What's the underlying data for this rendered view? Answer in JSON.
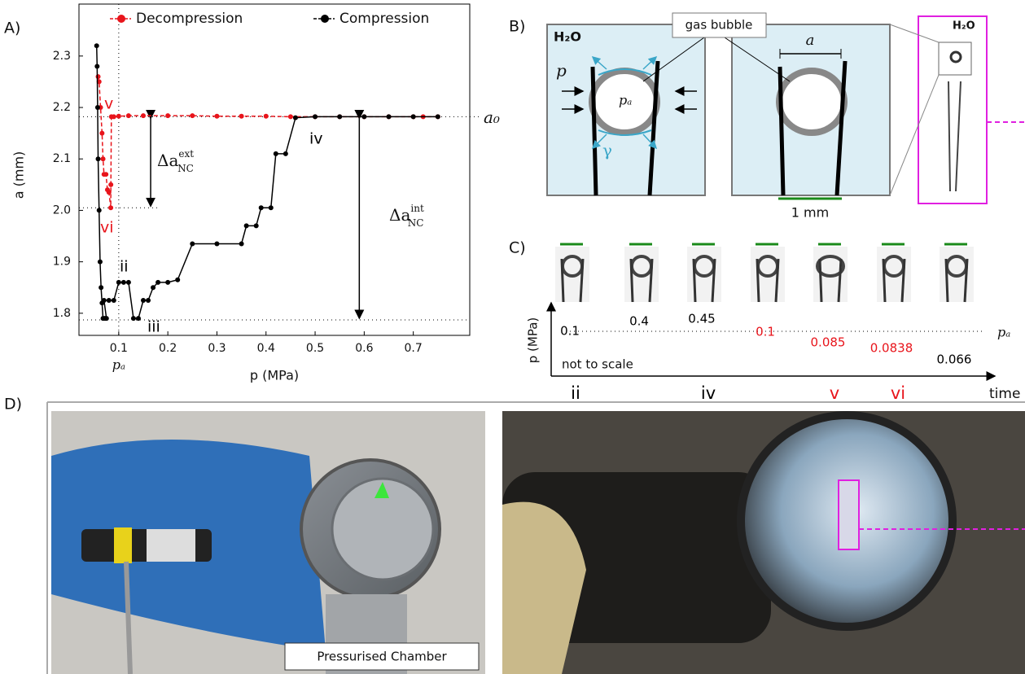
{
  "panels": {
    "a": "A)",
    "b": "B)",
    "c": "C)",
    "d": "D)"
  },
  "chart_data": {
    "type": "line",
    "xlabel": "p (MPa)",
    "ylabel": "a (mm)",
    "xlim": [
      0.019,
      0.815
    ],
    "ylim": [
      1.757,
      2.401
    ],
    "xticks": [
      0.1,
      0.2,
      0.3,
      0.4,
      0.5,
      0.6,
      0.7
    ],
    "yticks": [
      1.8,
      1.9,
      {
        "value": 2,
        "label": "2.0"
      },
      2.1,
      2.2,
      2.3
    ],
    "series": [
      {
        "name": "Decompression",
        "color": "#e8141b",
        "x": [
          0.75,
          0.72,
          0.7,
          0.65,
          0.6,
          0.55,
          0.5,
          0.45,
          0.4,
          0.35,
          0.3,
          0.25,
          0.2,
          0.15,
          0.12,
          0.1,
          0.09,
          0.085,
          0.084,
          0.0838,
          0.08,
          0.077,
          0.074,
          0.07,
          0.068,
          0.066,
          0.063,
          0.06,
          0.058
        ],
        "values": [
          2.182,
          2.182,
          2.182,
          2.182,
          2.182,
          2.182,
          2.182,
          2.182,
          2.183,
          2.183,
          2.183,
          2.184,
          2.184,
          2.184,
          2.184,
          2.183,
          2.182,
          2.182,
          2.05,
          2.005,
          2.035,
          2.04,
          2.07,
          2.07,
          2.1,
          2.15,
          2.2,
          2.25,
          2.26
        ]
      },
      {
        "name": "Compression",
        "color": "#000000",
        "x": [
          0.055,
          0.056,
          0.057,
          0.058,
          0.06,
          0.062,
          0.064,
          0.066,
          0.068,
          0.072,
          0.075,
          0.07,
          0.08,
          0.09,
          0.1,
          0.11,
          0.12,
          0.13,
          0.14,
          0.15,
          0.16,
          0.17,
          0.18,
          0.2,
          0.22,
          0.25,
          0.3,
          0.35,
          0.36,
          0.38,
          0.39,
          0.41,
          0.42,
          0.44,
          0.46,
          0.5,
          0.55,
          0.6,
          0.65,
          0.7,
          0.75
        ],
        "values": [
          2.32,
          2.28,
          2.2,
          2.1,
          2.0,
          1.9,
          1.85,
          1.82,
          1.79,
          1.79,
          1.79,
          1.825,
          1.825,
          1.825,
          1.86,
          1.86,
          1.86,
          1.79,
          1.79,
          1.825,
          1.825,
          1.85,
          1.86,
          1.86,
          1.865,
          1.935,
          1.935,
          1.935,
          1.97,
          1.97,
          2.005,
          2.005,
          2.11,
          2.11,
          2.18,
          2.182,
          2.182,
          2.182,
          2.182,
          2.182,
          2.182
        ]
      }
    ],
    "ref_x": [
      0.1
    ],
    "ref_y": [
      2.182,
      2.005,
      1.787
    ],
    "x_ref_label": "pₐ",
    "y_ref_label": "a₀",
    "delta_ext": {
      "base": "Δa",
      "sup": "ext",
      "sub": "NC"
    },
    "delta_int": {
      "base": "Δa",
      "sup": "int",
      "sub": "NC"
    },
    "stages": [
      {
        "text": "v",
        "color": "#e8141b"
      },
      {
        "text": "vi",
        "color": "#e8141b"
      },
      {
        "text": "ii",
        "color": "#000000"
      },
      {
        "text": "iii",
        "color": "#000000"
      },
      {
        "text": "iv",
        "color": "#000000"
      }
    ]
  },
  "panel_b": {
    "medium": "H₂O",
    "callout": "gas bubble",
    "pressure": "p",
    "inner_pressure": "pₐ",
    "tension": "γ",
    "width": "a",
    "scale": "1 mm",
    "inset_medium": "H₂O"
  },
  "panel_c": {
    "axis_label": "p (MPa)",
    "level_label": "pₐ",
    "note": "not to scale",
    "time_label": "time",
    "pressures": [
      {
        "value": 0.1,
        "color": "#000000"
      },
      {
        "value": 0.4,
        "color": "#000000"
      },
      {
        "value": 0.45,
        "color": "#000000"
      },
      {
        "value": 0.1,
        "color": "#e8141b"
      },
      {
        "value": 0.085,
        "color": "#e8141b"
      },
      {
        "value": 0.0838,
        "color": "#e8141b"
      },
      {
        "value": 0.066,
        "color": "#000000"
      }
    ],
    "stages": [
      {
        "text": "ii",
        "color": "#000000"
      },
      {
        "text": "iv",
        "color": "#000000"
      },
      {
        "text": "v",
        "color": "#e8141b"
      },
      {
        "text": "vi",
        "color": "#e8141b"
      }
    ]
  },
  "panel_d": {
    "chamber_label": "Pressurised Chamber"
  }
}
